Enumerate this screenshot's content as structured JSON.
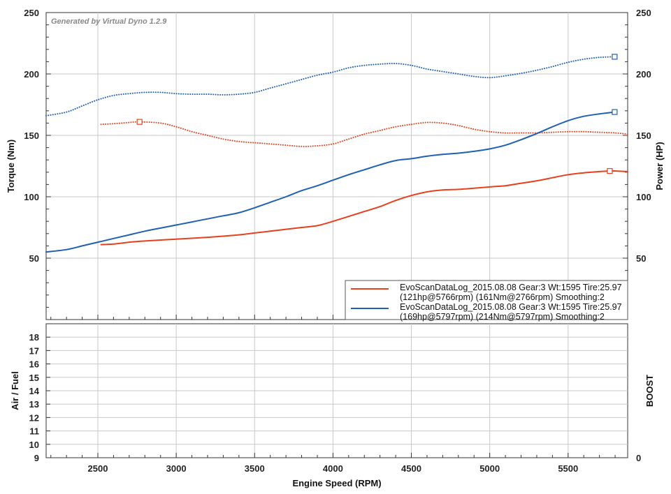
{
  "chart_data": [
    {
      "type": "line",
      "watermark": "Generated by Virtual Dyno 1.2.9",
      "xlabel": "Engine Speed (RPM)",
      "ylabel": "Torque (Nm)",
      "y2label": "Power (HP)",
      "xlim": [
        2170,
        5880
      ],
      "ylim": [
        0,
        250
      ],
      "y2lim": [
        0,
        250
      ],
      "x_ticks": [
        2500,
        3000,
        3500,
        4000,
        4500,
        5000,
        5500
      ],
      "y_ticks": [
        50,
        100,
        150,
        200,
        250
      ],
      "y2_ticks": [
        50,
        100,
        150,
        200,
        250
      ],
      "grid": true,
      "legend_position": "bottom-right",
      "legend": [
        {
          "color": "#e8401c",
          "line1": "EvoScanDataLog_2015.08.08 Gear:3 Wt:1595 Tire:25.97",
          "line2": "(121hp@5766rpm) (161Nm@2766rpm) Smoothing:2"
        },
        {
          "color": "#1f5fb4",
          "line1": "EvoScanDataLog_2015.08.08 Gear:3 Wt:1595 Tire:25.97",
          "line2": "(169hp@5797rpm) (214Nm@5797rpm) Smoothing:2"
        }
      ],
      "series": [
        {
          "color": "#e8401c",
          "style": "solid",
          "axis": "right",
          "x": [
            2520,
            2600,
            2700,
            2800,
            3000,
            3200,
            3400,
            3500,
            3600,
            3700,
            3800,
            3900,
            4000,
            4100,
            4200,
            4300,
            4400,
            4500,
            4600,
            4700,
            4800,
            4900,
            5000,
            5100,
            5200,
            5300,
            5400,
            5500,
            5600,
            5700,
            5766,
            5800,
            5880
          ],
          "y": [
            61,
            61.5,
            63,
            64,
            65.5,
            67,
            69,
            70.5,
            72,
            73.5,
            75,
            76.5,
            80,
            84,
            88,
            92,
            97,
            101,
            104,
            105.5,
            106,
            107,
            108,
            109,
            111,
            113,
            115.5,
            118,
            119.5,
            120.5,
            121,
            121,
            120.5
          ],
          "marker": {
            "x": 5766,
            "y": 121
          }
        },
        {
          "color": "#e8401c",
          "style": "dotted",
          "axis": "left",
          "x": [
            2520,
            2600,
            2700,
            2766,
            2900,
            3000,
            3100,
            3200,
            3300,
            3400,
            3500,
            3600,
            3700,
            3800,
            3900,
            4000,
            4100,
            4200,
            4300,
            4400,
            4500,
            4600,
            4700,
            4800,
            4900,
            5000,
            5100,
            5200,
            5300,
            5400,
            5500,
            5600,
            5700,
            5800,
            5880
          ],
          "y": [
            159,
            159.5,
            160.5,
            161,
            160,
            157,
            153,
            150,
            147,
            145,
            144,
            143,
            142,
            141,
            141.5,
            143,
            147,
            151,
            154,
            157,
            159,
            160.5,
            160,
            158,
            155,
            153,
            152,
            152,
            152,
            152.5,
            153,
            153,
            152.5,
            152,
            151
          ],
          "marker": {
            "x": 2766,
            "y": 161
          }
        },
        {
          "color": "#1f5fb4",
          "style": "solid",
          "axis": "right",
          "x": [
            2170,
            2300,
            2400,
            2500,
            2600,
            2700,
            2800,
            2900,
            3000,
            3100,
            3200,
            3300,
            3400,
            3500,
            3600,
            3700,
            3800,
            3900,
            4000,
            4100,
            4200,
            4300,
            4400,
            4500,
            4600,
            4700,
            4800,
            4900,
            5000,
            5100,
            5200,
            5300,
            5400,
            5500,
            5600,
            5700,
            5797
          ],
          "y": [
            55,
            57,
            60,
            63,
            66,
            69,
            72,
            74.5,
            77,
            79.5,
            82,
            84.5,
            87,
            91,
            95.5,
            100,
            105,
            109,
            113.5,
            118,
            122,
            126,
            129.5,
            131,
            133,
            134.5,
            135.5,
            137,
            139,
            142,
            146.5,
            151.5,
            157,
            162,
            165.5,
            167.5,
            169
          ],
          "marker": {
            "x": 5797,
            "y": 169
          }
        },
        {
          "color": "#1f5fb4",
          "style": "dotted",
          "axis": "left",
          "x": [
            2170,
            2300,
            2400,
            2500,
            2600,
            2700,
            2800,
            2900,
            3000,
            3100,
            3200,
            3300,
            3400,
            3500,
            3600,
            3700,
            3800,
            3900,
            4000,
            4100,
            4200,
            4300,
            4400,
            4500,
            4600,
            4700,
            4800,
            4900,
            5000,
            5100,
            5200,
            5300,
            5400,
            5500,
            5600,
            5700,
            5797
          ],
          "y": [
            166,
            169,
            174,
            179,
            182.5,
            184,
            185,
            185,
            184,
            183.5,
            183.5,
            183,
            183.5,
            185,
            188.5,
            192,
            195.5,
            199,
            201.5,
            205,
            207,
            208,
            208.5,
            207,
            204,
            202,
            200,
            198,
            197,
            198.5,
            200.5,
            203,
            206,
            209.5,
            212,
            213.5,
            214
          ],
          "marker": {
            "x": 5797,
            "y": 214
          }
        }
      ]
    },
    {
      "type": "line",
      "xlabel": "Engine Speed (RPM)",
      "ylabel": "Air / Fuel",
      "y2label": "BOOST",
      "ylim": [
        9,
        19
      ],
      "y_ticks": [
        9,
        10,
        11,
        12,
        13,
        14,
        15,
        16,
        17,
        18
      ],
      "y2_ticks": [
        0
      ],
      "grid": true,
      "series": []
    }
  ]
}
